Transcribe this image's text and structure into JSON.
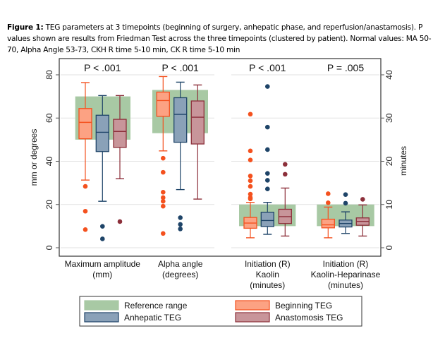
{
  "caption": {
    "label": "Figure 1:",
    "text": " TEG parameters at 3 timepoints (beginning of surgery, anhepatic phase, and reperfusion/anastamosis). P values shown are results from Friedman Test across the three timepoints (clustered by patient). Normal values: MA 50-70, Alpha Angle 53-73, CKH R time 5-10 min, CK R time 5-10 min"
  },
  "chart_data": {
    "type": "box",
    "title": "",
    "left_axis": {
      "label": "mm or degrees",
      "range": [
        -4,
        88
      ],
      "ticks": [
        0,
        20,
        40,
        60,
        80
      ]
    },
    "right_axis": {
      "label": "minutes",
      "range": [
        -2,
        44
      ],
      "ticks": [
        0,
        10,
        20,
        30,
        40
      ]
    },
    "grid": true,
    "legend_position": "bottom",
    "series_names": [
      "Beginning TEG",
      "Anhepatic TEG",
      "Anastomosis TEG"
    ],
    "colors": {
      "reference": "#a8c9a4",
      "Beginning TEG": {
        "fill": "#fca283",
        "stroke": "#f4511e"
      },
      "Anhepatic TEG": {
        "fill": "#8aa1b8",
        "stroke": "#1e4468"
      },
      "Anastomosis TEG": {
        "fill": "#c8959a",
        "stroke": "#8c2f3a"
      }
    },
    "groups": [
      {
        "category": [
          "Maximum amplitude",
          "(mm)"
        ],
        "axis": "left",
        "p_value": "P < .001",
        "reference_range": [
          50,
          70
        ],
        "boxes": [
          {
            "series": "Beginning TEG",
            "whisker_low": 31.3,
            "q1": 50.4,
            "median": 58,
            "q3": 64.4,
            "whisker_high": 76.4,
            "outliers": [
              28.4,
              16.9,
              8.4
            ]
          },
          {
            "series": "Anhepatic TEG",
            "whisker_low": 21.5,
            "q1": 44.5,
            "median": 53.4,
            "q3": 61.3,
            "whisker_high": 70.4,
            "outliers": [
              9.9,
              4.1
            ]
          },
          {
            "series": "Anastomosis TEG",
            "whisker_low": 31.9,
            "q1": 46.4,
            "median": 53.8,
            "q3": 59.4,
            "whisker_high": 70.4,
            "outliers": [
              12.1
            ]
          }
        ]
      },
      {
        "category": [
          "Alpha angle",
          "(degrees)"
        ],
        "axis": "left",
        "p_value": "P < .001",
        "reference_range": [
          53,
          73
        ],
        "boxes": [
          {
            "series": "Beginning TEG",
            "whisker_low": 44.8,
            "q1": 60.8,
            "median": 68.1,
            "q3": 72,
            "whisker_high": 79.2,
            "outliers": [
              41.4,
              34.9,
              25.7,
              23.2,
              21.5,
              19.2,
              6.6
            ]
          },
          {
            "series": "Anhepatic TEG",
            "whisker_low": 26.9,
            "q1": 48.8,
            "median": 61.7,
            "q3": 69.4,
            "whisker_high": 76.6,
            "outliers": [
              13.9,
              10.8,
              8.7
            ]
          },
          {
            "series": "Anastomosis TEG",
            "whisker_low": 22.5,
            "q1": 48,
            "median": 60.4,
            "q3": 67.9,
            "whisker_high": 75.3,
            "outliers": []
          }
        ]
      },
      {
        "category": [
          "Initiation (R)",
          "Kaolin",
          "(minutes)"
        ],
        "axis": "right",
        "p_value": "P < .001",
        "reference_range": [
          5,
          10
        ],
        "boxes": [
          {
            "series": "Beginning TEG",
            "whisker_low": 2.3,
            "q1": 4.5,
            "median": 5.7,
            "q3": 7.0,
            "whisker_high": 10.5,
            "outliers": [
              30.9,
              22.4,
              20.3,
              16.6,
              15.5,
              14.2,
              12.4,
              11.6,
              11.3
            ]
          },
          {
            "series": "Anhepatic TEG",
            "whisker_low": 3.1,
            "q1": 4.9,
            "median": 6.3,
            "q3": 8.2,
            "whisker_high": 10.5,
            "outliers": [
              37.3,
              27.9,
              22.7,
              17.2,
              15.6,
              13.6
            ]
          },
          {
            "series": "Anastomosis TEG",
            "whisker_low": 2.7,
            "q1": 5.6,
            "median": 7.2,
            "q3": 8.9,
            "whisker_high": 13.8,
            "outliers": [
              19.3,
              17.0
            ]
          }
        ]
      },
      {
        "category": [
          "Initiation (R)",
          "Kaolin-Heparinase",
          "(minutes)"
        ],
        "axis": "right",
        "p_value": "P = .005",
        "reference_range": [
          5,
          10
        ],
        "boxes": [
          {
            "series": "Beginning TEG",
            "whisker_low": 2.3,
            "q1": 4.6,
            "median": 5.3,
            "q3": 6.6,
            "whisker_high": 9.4,
            "outliers": [
              12.5,
              10.4
            ]
          },
          {
            "series": "Anhepatic TEG",
            "whisker_low": 3.3,
            "q1": 4.8,
            "median": 5.6,
            "q3": 6.4,
            "whisker_high": 8.3,
            "outliers": [
              12.3,
              10.3
            ]
          },
          {
            "series": "Anastomosis TEG",
            "whisker_low": 2.7,
            "q1": 5.2,
            "median": 6.1,
            "q3": 6.9,
            "whisker_high": 9.9,
            "outliers": [
              11.2
            ]
          }
        ]
      }
    ],
    "legend": [
      {
        "label": "Reference range",
        "key": "reference"
      },
      {
        "label": "Beginning TEG",
        "key": "Beginning TEG"
      },
      {
        "label": "Anhepatic TEG",
        "key": "Anhepatic TEG"
      },
      {
        "label": "Anastomosis TEG",
        "key": "Anastomosis TEG"
      }
    ]
  }
}
